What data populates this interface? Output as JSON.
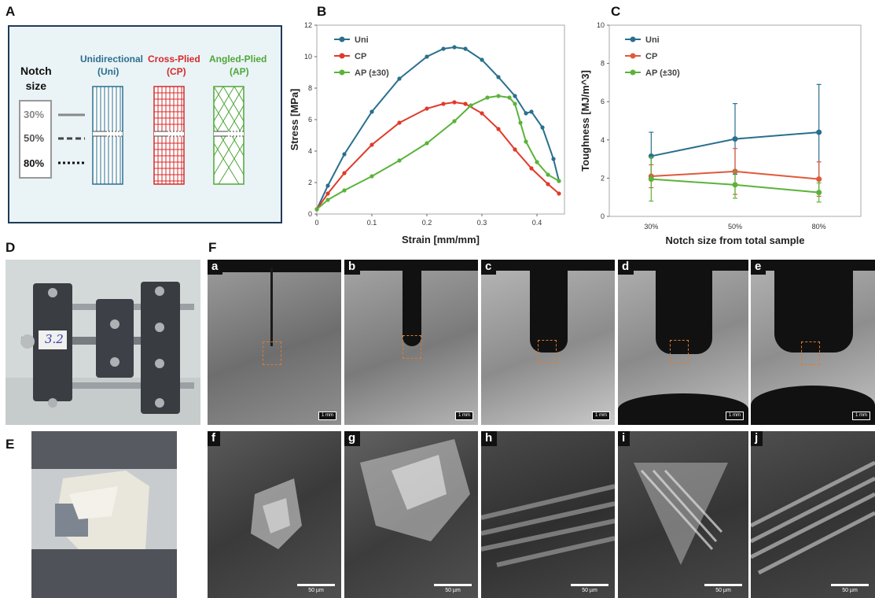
{
  "panel_labels": {
    "A": "A",
    "B": "B",
    "C": "C",
    "D": "D",
    "E": "E",
    "F": "F"
  },
  "panelA": {
    "notch_title": "Notch\nsize",
    "notch_sizes": [
      "30%",
      "50%",
      "80%"
    ],
    "types": [
      {
        "name": "Unidirectional",
        "abbr": "(Uni)",
        "color": "#2a6f8e"
      },
      {
        "name": "Cross-Plied",
        "abbr": "(CP)",
        "color": "#d42a2a"
      },
      {
        "name": "Angled-Plied",
        "abbr": "(AP)",
        "color": "#4fa63a"
      }
    ],
    "border_color": "#1f3b57",
    "background": "#eaf3f6"
  },
  "chart_data": [
    {
      "type": "line",
      "panel": "B",
      "xlabel": "Strain [mm/mm]",
      "ylabel": "Stress [MPa]",
      "xlim": [
        0,
        0.45
      ],
      "ylim": [
        0,
        12
      ],
      "xticks": [
        "0",
        "0.1",
        "0.2",
        "0.3",
        "0.4"
      ],
      "yticks": [
        "0",
        "2",
        "4",
        "6",
        "8",
        "10",
        "12"
      ],
      "legend_position": "top-left",
      "series": [
        {
          "name": "Uni",
          "color": "#2a6f8e",
          "x": [
            0,
            0.02,
            0.05,
            0.1,
            0.15,
            0.2,
            0.23,
            0.25,
            0.27,
            0.3,
            0.33,
            0.36,
            0.38,
            0.39,
            0.41,
            0.43,
            0.44
          ],
          "y": [
            0.3,
            1.8,
            3.8,
            6.5,
            8.6,
            10.0,
            10.5,
            10.6,
            10.5,
            9.8,
            8.7,
            7.5,
            6.4,
            6.5,
            5.5,
            3.5,
            2.1
          ]
        },
        {
          "name": "CP",
          "color": "#e03a2a",
          "x": [
            0,
            0.02,
            0.05,
            0.1,
            0.15,
            0.2,
            0.23,
            0.25,
            0.27,
            0.3,
            0.33,
            0.36,
            0.39,
            0.42,
            0.44
          ],
          "y": [
            0.3,
            1.3,
            2.6,
            4.4,
            5.8,
            6.7,
            7.0,
            7.1,
            7.0,
            6.4,
            5.4,
            4.1,
            2.9,
            1.9,
            1.3
          ]
        },
        {
          "name": "AP (±30)",
          "color": "#5bb33a",
          "x": [
            0,
            0.02,
            0.05,
            0.1,
            0.15,
            0.2,
            0.25,
            0.28,
            0.31,
            0.33,
            0.35,
            0.36,
            0.37,
            0.38,
            0.4,
            0.42,
            0.44
          ],
          "y": [
            0.3,
            0.9,
            1.5,
            2.4,
            3.4,
            4.5,
            5.9,
            6.9,
            7.4,
            7.5,
            7.4,
            7.0,
            5.8,
            4.6,
            3.3,
            2.5,
            2.1
          ]
        }
      ]
    },
    {
      "type": "line",
      "panel": "C",
      "xlabel": "Notch size from total sample",
      "ylabel": "Toughness [MJ/m^3]",
      "categories": [
        "30%",
        "50%",
        "80%"
      ],
      "ylim": [
        0,
        10
      ],
      "yticks": [
        "0",
        "2",
        "4",
        "6",
        "8",
        "10"
      ],
      "legend_position": "top-left",
      "series": [
        {
          "name": "Uni",
          "color": "#2a6f8e",
          "values": [
            3.15,
            4.05,
            4.4
          ],
          "errors": [
            1.25,
            1.85,
            2.5
          ]
        },
        {
          "name": "CP",
          "color": "#e05a3a",
          "values": [
            2.1,
            2.35,
            1.95
          ],
          "errors": [
            0.6,
            1.2,
            0.9
          ]
        },
        {
          "name": "AP (±30)",
          "color": "#5bb33a",
          "values": [
            1.95,
            1.65,
            1.25
          ],
          "errors": [
            1.15,
            0.7,
            0.5
          ]
        }
      ]
    }
  ],
  "panelD": {
    "handwritten_label": "3.2"
  },
  "panelF": {
    "optical_labels": [
      "a",
      "b",
      "c",
      "d",
      "e"
    ],
    "optical_scale": "1 mm",
    "sem_labels": [
      "f",
      "g",
      "h",
      "i",
      "j"
    ],
    "sem_scale": "50 µm"
  }
}
